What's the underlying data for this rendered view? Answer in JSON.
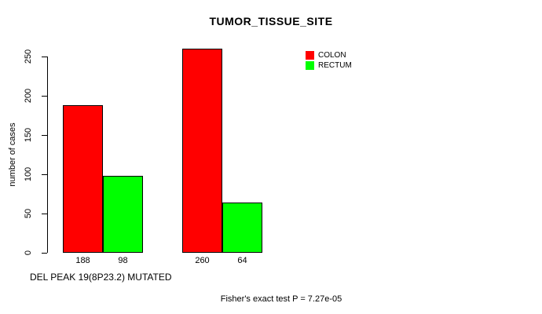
{
  "chart_data": {
    "type": "bar",
    "title": "TUMOR_TISSUE_SITE",
    "ylabel": "number of cases",
    "xlabel_note": "DEL PEAK 19(8P23.2) MUTATED",
    "footnote": "Fisher's exact test P = 7.27e-05",
    "categories": [
      "group-1",
      "group-2"
    ],
    "series": [
      {
        "name": "COLON",
        "color": "#ff0000",
        "values": [
          188,
          260
        ]
      },
      {
        "name": "RECTUM",
        "color": "#00ff00",
        "values": [
          98,
          64
        ]
      }
    ],
    "value_labels": [
      "188",
      "98",
      "260",
      "64"
    ],
    "yticks": [
      0,
      50,
      100,
      150,
      200,
      250
    ],
    "ylim": [
      0,
      260
    ],
    "grid": false,
    "legend_position": "top-right",
    "bar_border_color": "#000000",
    "background_color": "#ffffff",
    "text_color": "#000000"
  }
}
